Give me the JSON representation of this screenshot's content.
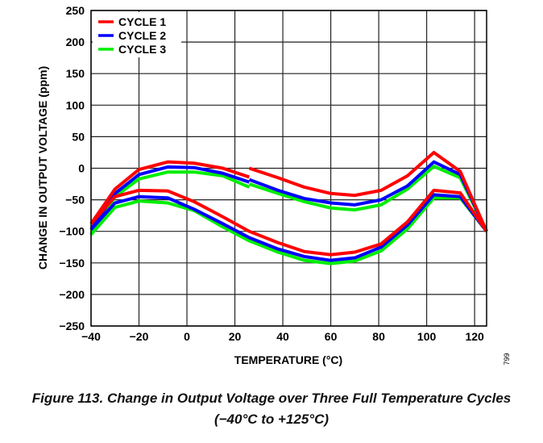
{
  "chart_data": {
    "type": "line",
    "title": "",
    "xlabel": "TEMPERATURE (°C)",
    "ylabel": "CHANGE IN OUTPUT VOLTAGE (ppm)",
    "xlim": [
      -40,
      125
    ],
    "ylim": [
      -250,
      250
    ],
    "xticks": [
      -40,
      -20,
      0,
      20,
      40,
      60,
      80,
      100,
      120
    ],
    "yticks": [
      250,
      200,
      150,
      100,
      50,
      0,
      -50,
      -100,
      -150,
      -200,
      -250
    ],
    "grid": true,
    "legend_position": "top-left",
    "x_upper_a": [
      -40,
      -30,
      -20,
      -8,
      3,
      15,
      26
    ],
    "x_upper_b": [
      26,
      38,
      49,
      60,
      70,
      81,
      92,
      103,
      114,
      125
    ],
    "x_lower": [
      -40,
      -30,
      -20,
      -8,
      3,
      15,
      26,
      38,
      49,
      60,
      70,
      81,
      92,
      103,
      114,
      125
    ],
    "series": [
      {
        "name": "CYCLE 1",
        "color": "#ff0000",
        "upper_a": [
          -88,
          -33,
          -2,
          10,
          8,
          0,
          -14
        ],
        "upper_b": [
          0,
          -15,
          -30,
          -40,
          -43,
          -35,
          -12,
          25,
          -5,
          -100
        ],
        "lower": [
          -88,
          -45,
          -35,
          -36,
          -53,
          -77,
          -100,
          -118,
          -132,
          -137,
          -133,
          -120,
          -85,
          -35,
          -39,
          -100
        ]
      },
      {
        "name": "CYCLE 2",
        "color": "#0000ff",
        "upper_a": [
          -97,
          -40,
          -10,
          2,
          1,
          -8,
          -22
        ],
        "upper_b": [
          -18,
          -35,
          -48,
          -55,
          -58,
          -50,
          -28,
          10,
          -10,
          -100
        ],
        "lower": [
          -97,
          -55,
          -45,
          -47,
          -65,
          -88,
          -110,
          -128,
          -140,
          -146,
          -142,
          -125,
          -90,
          -42,
          -45,
          -100
        ]
      },
      {
        "name": "CYCLE 3",
        "color": "#00ee00",
        "upper_a": [
          -105,
          -45,
          -17,
          -6,
          -6,
          -12,
          -30
        ],
        "upper_b": [
          -25,
          -40,
          -53,
          -63,
          -66,
          -58,
          -33,
          3,
          -15,
          -100
        ],
        "lower": [
          -105,
          -62,
          -52,
          -55,
          -67,
          -93,
          -115,
          -133,
          -146,
          -151,
          -147,
          -131,
          -96,
          -47,
          -47,
          -100
        ]
      }
    ]
  },
  "figure_id": "799",
  "caption": {
    "line1": "Figure 113. Change in Output Voltage over Three Full Temperature Cycles",
    "line2": "(−40°C to +125°C)"
  }
}
